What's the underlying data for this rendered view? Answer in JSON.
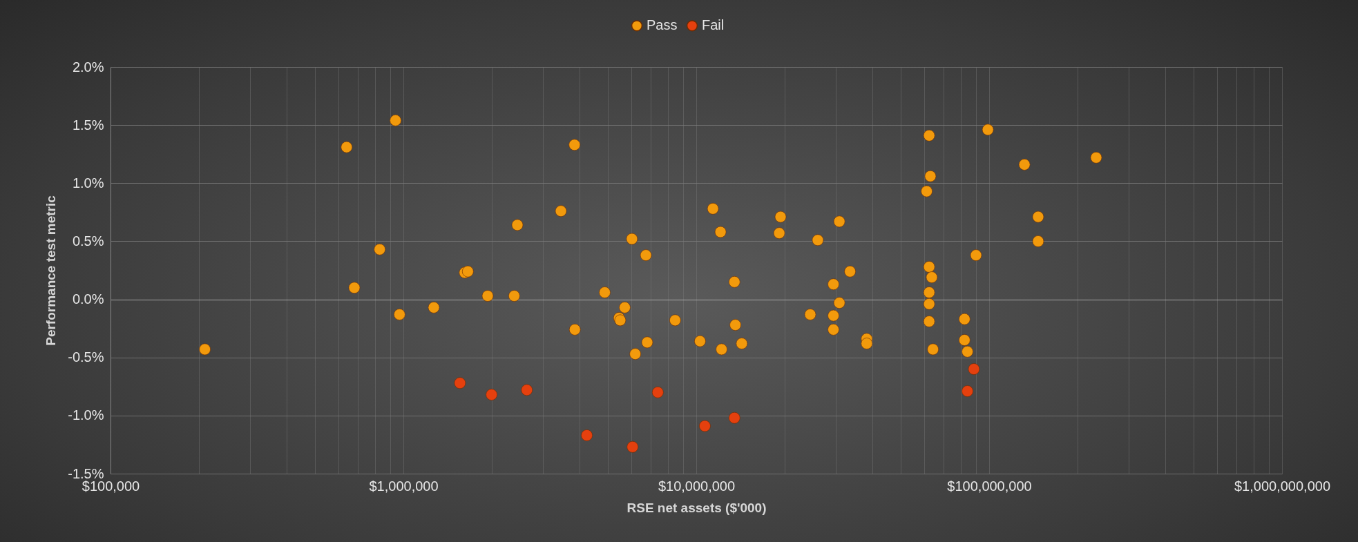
{
  "chart_data": {
    "type": "scatter",
    "xlabel": "RSE net assets ($'000)",
    "ylabel": "Performance test metric",
    "log": "x",
    "grid": true,
    "legend": "top",
    "marker": "circle",
    "xlim": [
      100000,
      1000000000
    ],
    "ylim": [
      -1.5,
      2.0
    ],
    "xticks": [
      {
        "value": 100000,
        "label": "$100,000"
      },
      {
        "value": 200000,
        "label": null
      },
      {
        "value": 300000,
        "label": null
      },
      {
        "value": 400000,
        "label": null
      },
      {
        "value": 500000,
        "label": null
      },
      {
        "value": 600000,
        "label": null
      },
      {
        "value": 700000,
        "label": null
      },
      {
        "value": 800000,
        "label": null
      },
      {
        "value": 900000,
        "label": null
      },
      {
        "value": 1000000,
        "label": "$1,000,000"
      },
      {
        "value": 2000000,
        "label": null
      },
      {
        "value": 3000000,
        "label": null
      },
      {
        "value": 4000000,
        "label": null
      },
      {
        "value": 5000000,
        "label": null
      },
      {
        "value": 6000000,
        "label": null
      },
      {
        "value": 7000000,
        "label": null
      },
      {
        "value": 8000000,
        "label": null
      },
      {
        "value": 9000000,
        "label": null
      },
      {
        "value": 10000000,
        "label": "$10,000,000"
      },
      {
        "value": 20000000,
        "label": null
      },
      {
        "value": 30000000,
        "label": null
      },
      {
        "value": 40000000,
        "label": null
      },
      {
        "value": 50000000,
        "label": null
      },
      {
        "value": 60000000,
        "label": null
      },
      {
        "value": 70000000,
        "label": null
      },
      {
        "value": 80000000,
        "label": null
      },
      {
        "value": 90000000,
        "label": null
      },
      {
        "value": 100000000,
        "label": "$100,000,000"
      },
      {
        "value": 200000000,
        "label": null
      },
      {
        "value": 300000000,
        "label": null
      },
      {
        "value": 400000000,
        "label": null
      },
      {
        "value": 500000000,
        "label": null
      },
      {
        "value": 600000000,
        "label": null
      },
      {
        "value": 700000000,
        "label": null
      },
      {
        "value": 800000000,
        "label": null
      },
      {
        "value": 900000000,
        "label": null
      },
      {
        "value": 1000000000,
        "label": "$1,000,000,000"
      }
    ],
    "yticks": [
      {
        "value": -1.5,
        "label": "-1.5%"
      },
      {
        "value": -1.0,
        "label": "-1.0%"
      },
      {
        "value": -0.5,
        "label": "-0.5%"
      },
      {
        "value": 0,
        "label": "0.0%"
      },
      {
        "value": 0.5,
        "label": "0.5%"
      },
      {
        "value": 1.0,
        "label": "1.0%"
      },
      {
        "value": 1.5,
        "label": "1.5%"
      },
      {
        "value": 2.0,
        "label": "2.0%"
      }
    ],
    "series": [
      {
        "name": "Pass",
        "color": "#f29a0c",
        "x": [
          210000,
          640000,
          940000,
          830000,
          680000,
          970000,
          1270000,
          1620000,
          1660000,
          1940000,
          2390000,
          2450000,
          3450000,
          3840000,
          3850000,
          4870000,
          5700000,
          5450000,
          5500000,
          6030000,
          6730000,
          6190000,
          6800000,
          8470000,
          10300000,
          11400000,
          12100000,
          12200000,
          13500000,
          13600000,
          14300000,
          19400000,
          19200000,
          24500000,
          26000000,
          29400000,
          30800000,
          30800000,
          29400000,
          29400000,
          33500000,
          38200000,
          38200000,
          62400000,
          99000000,
          132000000,
          232000000,
          63000000,
          61200000,
          147000000,
          147000000,
          90200000,
          62400000,
          63700000,
          62400000,
          62400000,
          62400000,
          64300000,
          82400000,
          82400000,
          84300000
        ],
        "values": [
          -0.43,
          1.31,
          1.54,
          0.43,
          0.1,
          -0.13,
          -0.07,
          0.23,
          0.24,
          0.03,
          0.03,
          0.64,
          0.76,
          1.33,
          -0.26,
          0.06,
          -0.07,
          -0.16,
          -0.18,
          0.52,
          0.38,
          -0.47,
          -0.37,
          -0.18,
          -0.36,
          0.78,
          0.58,
          -0.43,
          0.15,
          -0.22,
          -0.38,
          0.71,
          0.57,
          -0.13,
          0.51,
          0.13,
          0.67,
          -0.03,
          -0.14,
          -0.26,
          0.24,
          -0.34,
          -0.38,
          1.41,
          1.46,
          1.16,
          1.22,
          1.06,
          0.93,
          0.71,
          0.5,
          0.38,
          0.28,
          0.19,
          0.06,
          -0.04,
          -0.19,
          -0.43,
          -0.17,
          -0.35,
          -0.45
        ]
      },
      {
        "name": "Fail",
        "color": "#e5400e",
        "x": [
          1560000,
          2000000,
          2640000,
          4230000,
          6060000,
          7390000,
          10700000,
          13500000,
          88700000,
          84300000
        ],
        "values": [
          -0.72,
          -0.82,
          -0.78,
          -1.17,
          -1.27,
          -0.8,
          -1.09,
          -1.02,
          -0.6,
          -0.79
        ]
      }
    ]
  }
}
